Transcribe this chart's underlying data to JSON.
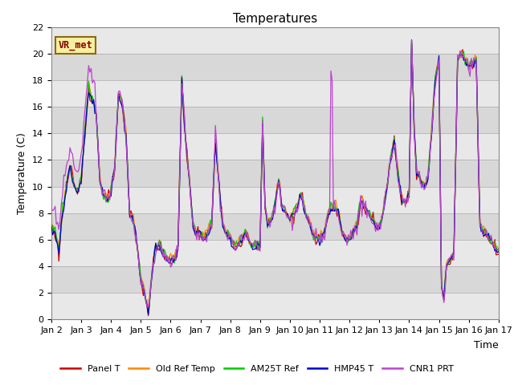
{
  "title": "Temperatures",
  "xlabel": "Time",
  "ylabel": "Temperature (C)",
  "ylim": [
    0,
    22
  ],
  "yticks": [
    0,
    2,
    4,
    6,
    8,
    10,
    12,
    14,
    16,
    18,
    20,
    22
  ],
  "xtick_labels": [
    "Jan 2",
    "Jan 3",
    "Jan 4",
    "Jan 5",
    "Jan 6",
    "Jan 7",
    "Jan 8",
    "Jan 9",
    "Jan 10",
    "Jan 11",
    "Jan 12",
    "Jan 13",
    "Jan 14",
    "Jan 15",
    "Jan 16",
    "Jan 17"
  ],
  "vr_met_label": "VR_met",
  "series": {
    "Panel T": {
      "color": "#cc0000"
    },
    "Old Ref Temp": {
      "color": "#ff8800"
    },
    "AM25T Ref": {
      "color": "#00cc00"
    },
    "HMP45 T": {
      "color": "#0000cc"
    },
    "CNR1 PRT": {
      "color": "#bb44cc"
    }
  },
  "plot_bg_bands": [
    "#e8e8e8",
    "#d8d8d8"
  ],
  "title_fontsize": 11,
  "axis_label_fontsize": 9,
  "tick_fontsize": 8,
  "legend_fontsize": 8
}
